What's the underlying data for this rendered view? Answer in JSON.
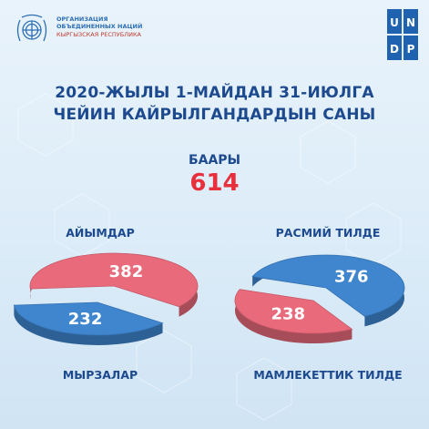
{
  "header": {
    "un_lines": [
      "ОРГАНИЗАЦИЯ",
      "ОБЪЕДИНЕННЫХ НАЦИЙ"
    ],
    "un_country": "КЫРГЫЗСКАЯ РЕСПУБЛИКА",
    "undp_letters": [
      "U",
      "N",
      "D",
      "P"
    ]
  },
  "title_lines": [
    "2020-ЖЫЛЫ 1-МАЙДАН 31-ИЮЛГА",
    "ЧЕЙИН КАЙРЫЛГАНДАРДЫН САНЫ"
  ],
  "total": {
    "label": "БААРЫ",
    "value": "614"
  },
  "colors": {
    "pink": "#e86a7b",
    "blue": "#3f86cf",
    "navy": "#1d4a8f",
    "red": "#e8303c"
  },
  "chart_data": [
    {
      "type": "pie",
      "top_label": "АЙЫМДАР",
      "bottom_label": "МЫРЗАЛАР",
      "slices": [
        {
          "label": "АЙЫМДАР",
          "value": 382,
          "color": "#e86a7b"
        },
        {
          "label": "МЫРЗАЛАР",
          "value": 232,
          "color": "#3f86cf"
        }
      ]
    },
    {
      "type": "pie",
      "top_label": "РАСМИЙ ТИЛДЕ",
      "bottom_label": "МАМЛЕКЕТТИК ТИЛДЕ",
      "slices": [
        {
          "label": "РАСМИЙ ТИЛДЕ",
          "value": 376,
          "color": "#3f86cf"
        },
        {
          "label": "МАМЛЕКЕТТИК ТИЛДЕ",
          "value": 238,
          "color": "#e86a7b"
        }
      ]
    }
  ]
}
